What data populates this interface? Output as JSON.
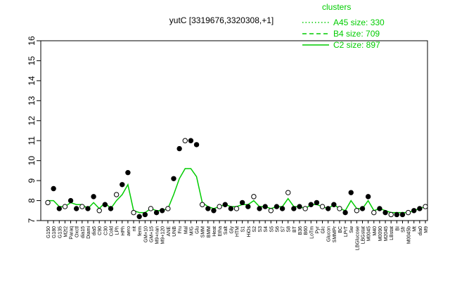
{
  "chart_data": {
    "type": "line",
    "title": "yutC [3319676,3320308,+1]",
    "xlabel": "",
    "ylabel": "",
    "ylim": [
      7,
      16
    ],
    "yticks": [
      7,
      8,
      9,
      10,
      11,
      12,
      13,
      14,
      15,
      16
    ],
    "grid": false,
    "legend": {
      "title": "clusters",
      "position": "top-right",
      "color": "#00cc00",
      "entries": [
        {
          "label": "A45 size: 330",
          "style": "dotted"
        },
        {
          "label": "B4 size: 709",
          "style": "dashed"
        },
        {
          "label": "C2 size: 897",
          "style": "solid"
        }
      ]
    },
    "x_labels": [
      "G150",
      "G180",
      "G135",
      "M2t2",
      "Paraq",
      "Oxctl",
      "dia15",
      "Diami",
      "dia5",
      "C90",
      "C30",
      "Cold",
      "LPh",
      "HPh",
      "aero",
      "nit",
      "ferm",
      "GM+10",
      "GM+15",
      "M9+nan",
      "M9+120",
      "ANE",
      "UNB",
      "Fru",
      "Mal",
      "M/G",
      "Glu",
      "SMM",
      "BMM",
      "Heat",
      "Etha",
      "Salt",
      "Gly",
      "HTM",
      "S1",
      "HiOs",
      "S2",
      "S3",
      "S4",
      "S5",
      "S6",
      "S7",
      "S8",
      "BT",
      "B36",
      "B60",
      "LoTm",
      "Pyr",
      "Glc",
      "Glucon",
      "SMMPr",
      "BC",
      "LPrT",
      "Sw",
      "LBGlucose",
      "LBGstat",
      "M0045",
      "M40",
      "M0090",
      "M2045",
      "LBstat",
      "BI",
      "Sfr",
      "M0045b",
      "Mt",
      "dia0",
      "M9"
    ],
    "x_labels_visible_note": "",
    "series": [
      {
        "name": "",
        "style": "points",
        "values": [
          7.9,
          8.6,
          7.6,
          7.7,
          8.0,
          7.6,
          7.7,
          7.6,
          8.2,
          7.5,
          7.8,
          7.6,
          8.3,
          8.8,
          9.4,
          7.4,
          7.2,
          7.3,
          7.6,
          7.4,
          7.5,
          7.6,
          9.1,
          10.6,
          11.0,
          11.0,
          10.8,
          7.8,
          7.6,
          7.5,
          7.7,
          7.8,
          7.6,
          7.6,
          7.9,
          7.7,
          8.2,
          7.6,
          7.7,
          7.5,
          7.7,
          7.6,
          8.4,
          7.6,
          7.7,
          7.6,
          7.8,
          7.9,
          7.7,
          7.6,
          7.8,
          7.6,
          7.4,
          8.4,
          7.5,
          7.6,
          8.2,
          7.4,
          7.6,
          7.4,
          7.3,
          7.3,
          7.3,
          7.4,
          7.5,
          7.6,
          7.7
        ]
      },
      {
        "name": "",
        "style": "solid",
        "values": [
          8.0,
          8.0,
          7.7,
          7.7,
          7.9,
          7.8,
          7.8,
          7.6,
          7.9,
          7.6,
          7.9,
          7.6,
          8.0,
          8.3,
          8.8,
          7.5,
          7.4,
          7.4,
          7.6,
          7.5,
          7.5,
          7.6,
          8.3,
          9.1,
          9.6,
          9.6,
          9.2,
          7.9,
          7.7,
          7.6,
          7.7,
          7.8,
          7.7,
          7.7,
          7.8,
          7.8,
          8.0,
          7.7,
          7.7,
          7.6,
          7.7,
          7.7,
          8.1,
          7.7,
          7.7,
          7.6,
          7.8,
          7.8,
          7.7,
          7.6,
          7.8,
          7.6,
          7.5,
          8.0,
          7.6,
          7.6,
          8.0,
          7.5,
          7.6,
          7.5,
          7.4,
          7.4,
          7.4,
          7.4,
          7.5,
          7.6,
          7.7
        ]
      }
    ]
  }
}
